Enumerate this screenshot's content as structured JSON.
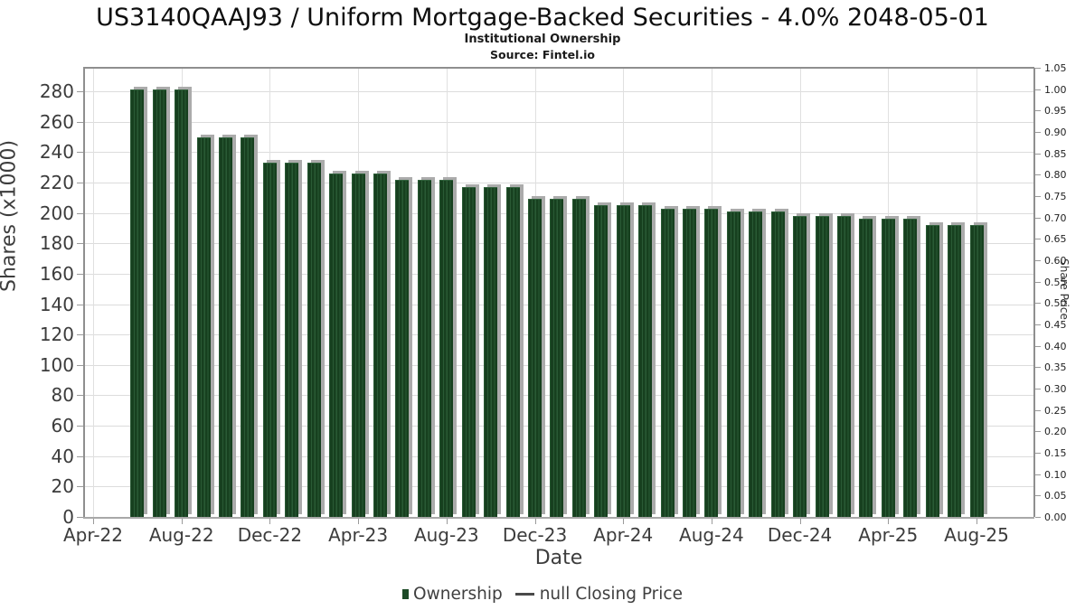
{
  "title": "US3140QAAJ93 / Uniform Mortgage-Backed Securities - 4.0% 2048-05-01",
  "subtitle": "Institutional Ownership",
  "source": "Source: Fintel.io",
  "colors": {
    "bar_green_dark": "#17401f",
    "bar_green_light": "#2a5a35",
    "bar_shadow": "#ababab",
    "gridline": "#dcdcdc",
    "axis_spine": "#8f8f8f",
    "tick_text": "#3c3c3c",
    "legend_dash": "#4a4a4a"
  },
  "chart_data": {
    "type": "bar",
    "title": "US3140QAAJ93 / Uniform Mortgage-Backed Securities - 4.0% 2048-05-01",
    "subtitle": "Institutional Ownership",
    "source": "Source: Fintel.io",
    "xlabel": "Date",
    "ylabel_left": "Shares (x1000)",
    "ylabel_right": "Share Price",
    "grid": true,
    "legend_position": "bottom",
    "legend": [
      "Ownership",
      "null Closing Price"
    ],
    "x_tick_labels": [
      "Apr-22",
      "Aug-22",
      "Dec-22",
      "Apr-23",
      "Aug-23",
      "Dec-23",
      "Apr-24",
      "Aug-24",
      "Dec-24",
      "Apr-25",
      "Aug-25"
    ],
    "y_left_ticks": [
      0,
      20,
      40,
      60,
      80,
      100,
      120,
      140,
      160,
      180,
      200,
      220,
      240,
      260,
      280
    ],
    "y_left_lim": [
      0,
      295.5
    ],
    "y_right_ticks": [
      "0.00",
      "0.05",
      "0.10",
      "0.15",
      "0.20",
      "0.25",
      "0.30",
      "0.35",
      "0.40",
      "0.45",
      "0.50",
      "0.55",
      "0.60",
      "0.65",
      "0.70",
      "0.75",
      "0.80",
      "0.85",
      "0.90",
      "0.95",
      "1.00",
      "1.05"
    ],
    "y_right_lim": [
      0,
      1.05
    ],
    "categories": [
      "Jun-22",
      "Jul-22",
      "Aug-22",
      "Sep-22",
      "Oct-22",
      "Nov-22",
      "Dec-22",
      "Jan-23",
      "Feb-23",
      "Mar-23",
      "Apr-23",
      "May-23",
      "Jun-23",
      "Jul-23",
      "Aug-23",
      "Sep-23",
      "Oct-23",
      "Nov-23",
      "Dec-23",
      "Jan-24",
      "Feb-24",
      "Mar-24",
      "Apr-24",
      "May-24",
      "Jun-24",
      "Jul-24",
      "Aug-24",
      "Sep-24",
      "Oct-24",
      "Nov-24",
      "Dec-24",
      "Jan-25",
      "Feb-25",
      "Mar-25",
      "Apr-25",
      "May-25",
      "Jun-25",
      "Jul-25",
      "Aug-25"
    ],
    "series": [
      {
        "name": "Ownership",
        "type": "bar",
        "values": [
          281,
          281,
          281,
          250,
          250,
          250,
          233,
          233,
          233,
          226,
          226,
          226,
          222,
          222,
          222,
          217,
          217,
          217,
          209,
          209,
          209,
          205,
          205,
          205,
          203,
          203,
          203,
          201,
          201,
          201,
          198,
          198,
          198,
          196,
          196,
          196,
          192,
          192,
          192
        ]
      },
      {
        "name": "null Closing Price",
        "type": "line",
        "values": []
      }
    ],
    "x_axis_start_label": "Apr-22",
    "first_bar_month_offset": 2
  }
}
